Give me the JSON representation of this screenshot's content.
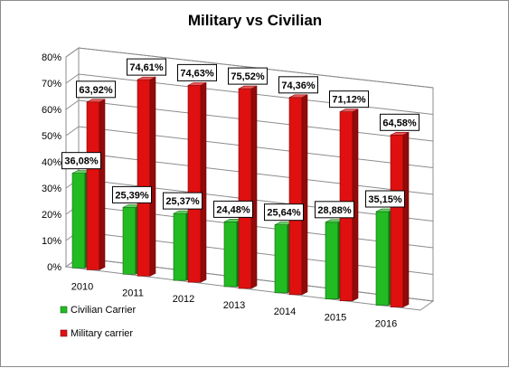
{
  "chart_data": {
    "type": "bar",
    "title": "Military vs Civilian",
    "categories": [
      "2010",
      "2011",
      "2012",
      "2013",
      "2014",
      "2015",
      "2016"
    ],
    "series": [
      {
        "name": "Civilian Carrier",
        "color": "#22bb22",
        "values": [
          36.08,
          25.39,
          25.37,
          24.48,
          25.64,
          28.88,
          35.15
        ],
        "labels": [
          "36,08%",
          "25,39%",
          "25,37%",
          "24,48%",
          "25,64%",
          "28,88%",
          "35,15%"
        ]
      },
      {
        "name": "Military carrier",
        "color": "#e01010",
        "values": [
          63.92,
          74.61,
          74.63,
          75.52,
          74.36,
          71.12,
          64.58
        ],
        "labels": [
          "63,92%",
          "74,61%",
          "74,63%",
          "75,52%",
          "74,36%",
          "71,12%",
          "64,58%"
        ]
      }
    ],
    "y_ticks": [
      "0%",
      "10%",
      "20%",
      "30%",
      "40%",
      "50%",
      "60%",
      "70%",
      "80%"
    ],
    "ylim": [
      0,
      80
    ],
    "grid": true,
    "legend_position": "bottom-left",
    "three_d": true
  }
}
